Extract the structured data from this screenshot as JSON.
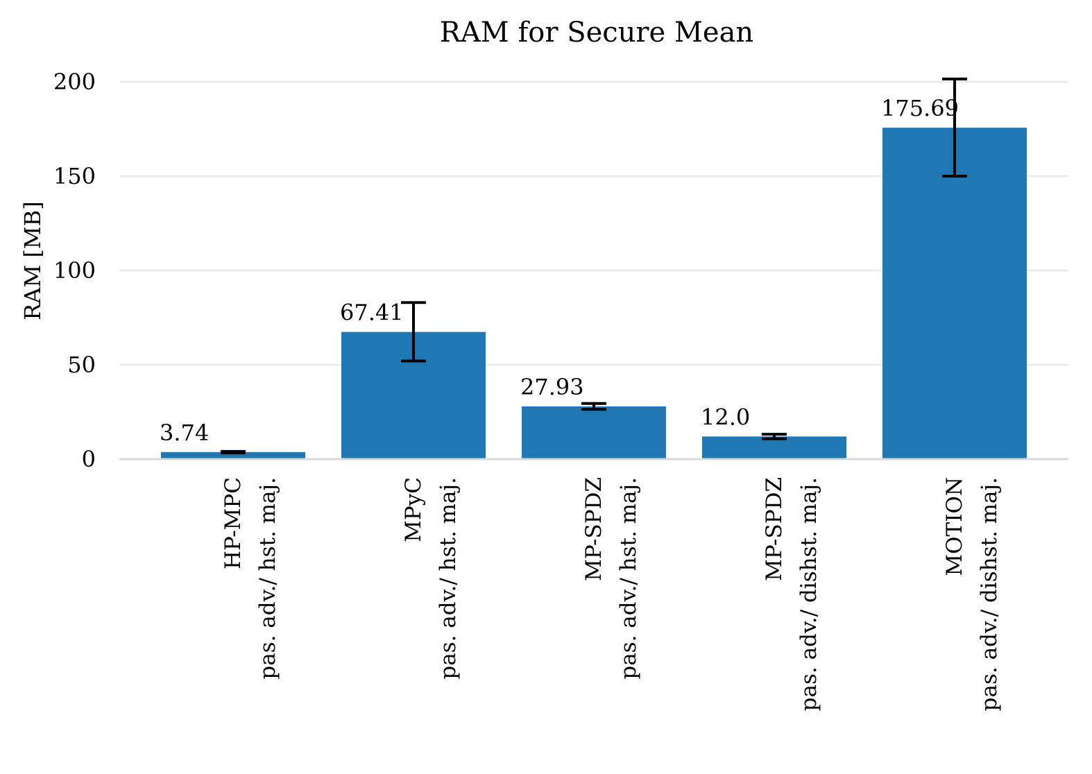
{
  "chart_data": {
    "type": "bar",
    "title": "RAM for Secure Mean",
    "xlabel": "",
    "ylabel": "RAM [MB]",
    "ylim": [
      0,
      212
    ],
    "yticks": [
      0,
      50,
      100,
      150,
      200
    ],
    "grid": "horizontal",
    "categories": [
      {
        "line1": "HP-MPC",
        "line2": "pas. adv./ hst. maj."
      },
      {
        "line1": "MPyC",
        "line2": "pas. adv./ hst. maj."
      },
      {
        "line1": "MP-SPDZ",
        "line2": "pas. adv./ hst. maj."
      },
      {
        "line1": "MP-SPDZ",
        "line2": "pas. adv./ dishst. maj."
      },
      {
        "line1": "MOTION",
        "line2": "pas. adv./ dishst. maj."
      }
    ],
    "values": [
      3.74,
      67.41,
      27.93,
      12.0,
      175.69
    ],
    "value_labels": [
      "3.74",
      "67.41",
      "27.93",
      "12.0",
      "175.69"
    ],
    "error_low": [
      3.3,
      52.0,
      26.4,
      10.8,
      150.0
    ],
    "error_high": [
      4.1,
      83.0,
      29.5,
      13.2,
      201.5
    ],
    "bar_color": "#1f77b4",
    "grid_color": "#ebebeb",
    "axis_color": "#d9d9d9",
    "error_color": "#000000"
  }
}
